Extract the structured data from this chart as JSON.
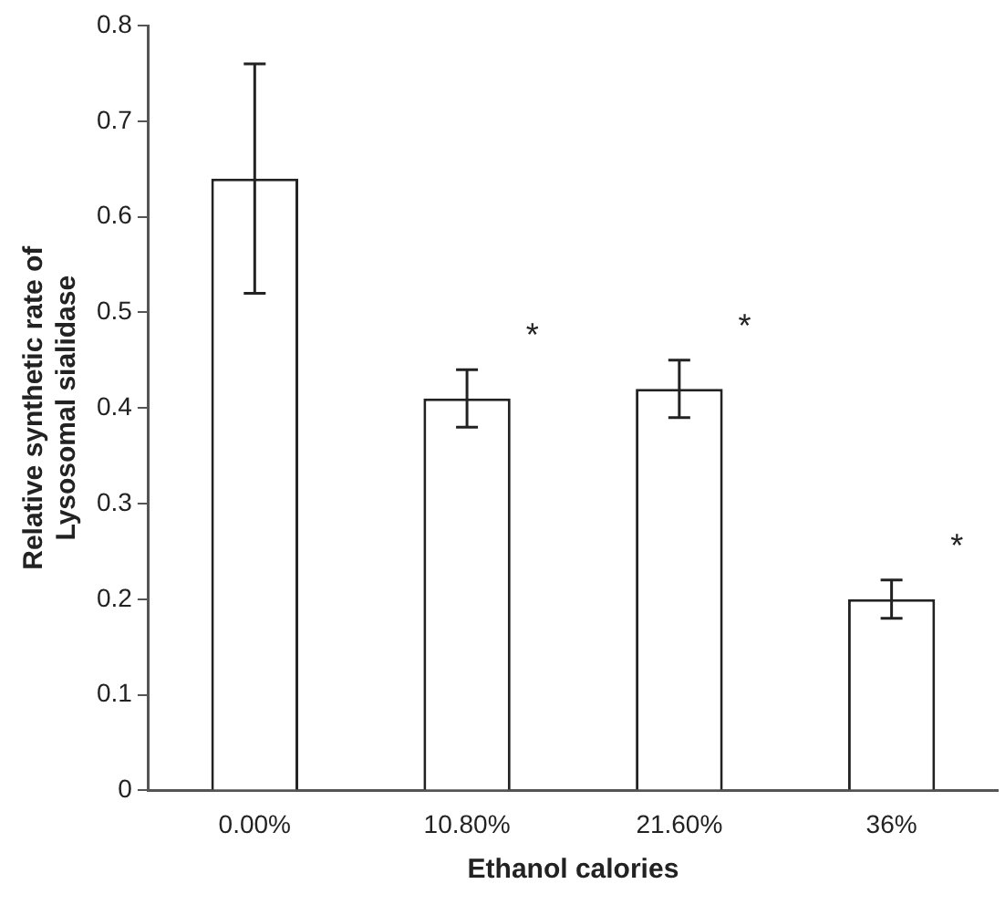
{
  "chart_data": {
    "type": "bar",
    "xlabel": "Ethanol calories",
    "ylabel": "Relative synthetic rate of Lysosomal sialidase",
    "categories": [
      "0.00%",
      "10.80%",
      "21.60%",
      "36%"
    ],
    "values": [
      0.64,
      0.41,
      0.42,
      0.2
    ],
    "errors": [
      [
        0.52,
        0.76
      ],
      [
        0.38,
        0.44
      ],
      [
        0.39,
        0.45
      ],
      [
        0.18,
        0.22
      ]
    ],
    "color": "#ffffff",
    "ylim": [
      0,
      0.8
    ],
    "yticks": [
      0,
      0.1,
      0.2,
      0.3,
      0.4,
      0.5,
      0.6,
      0.7,
      0.8
    ],
    "grid": false,
    "legend": false,
    "annotations": [
      "*",
      "*",
      "*"
    ]
  }
}
